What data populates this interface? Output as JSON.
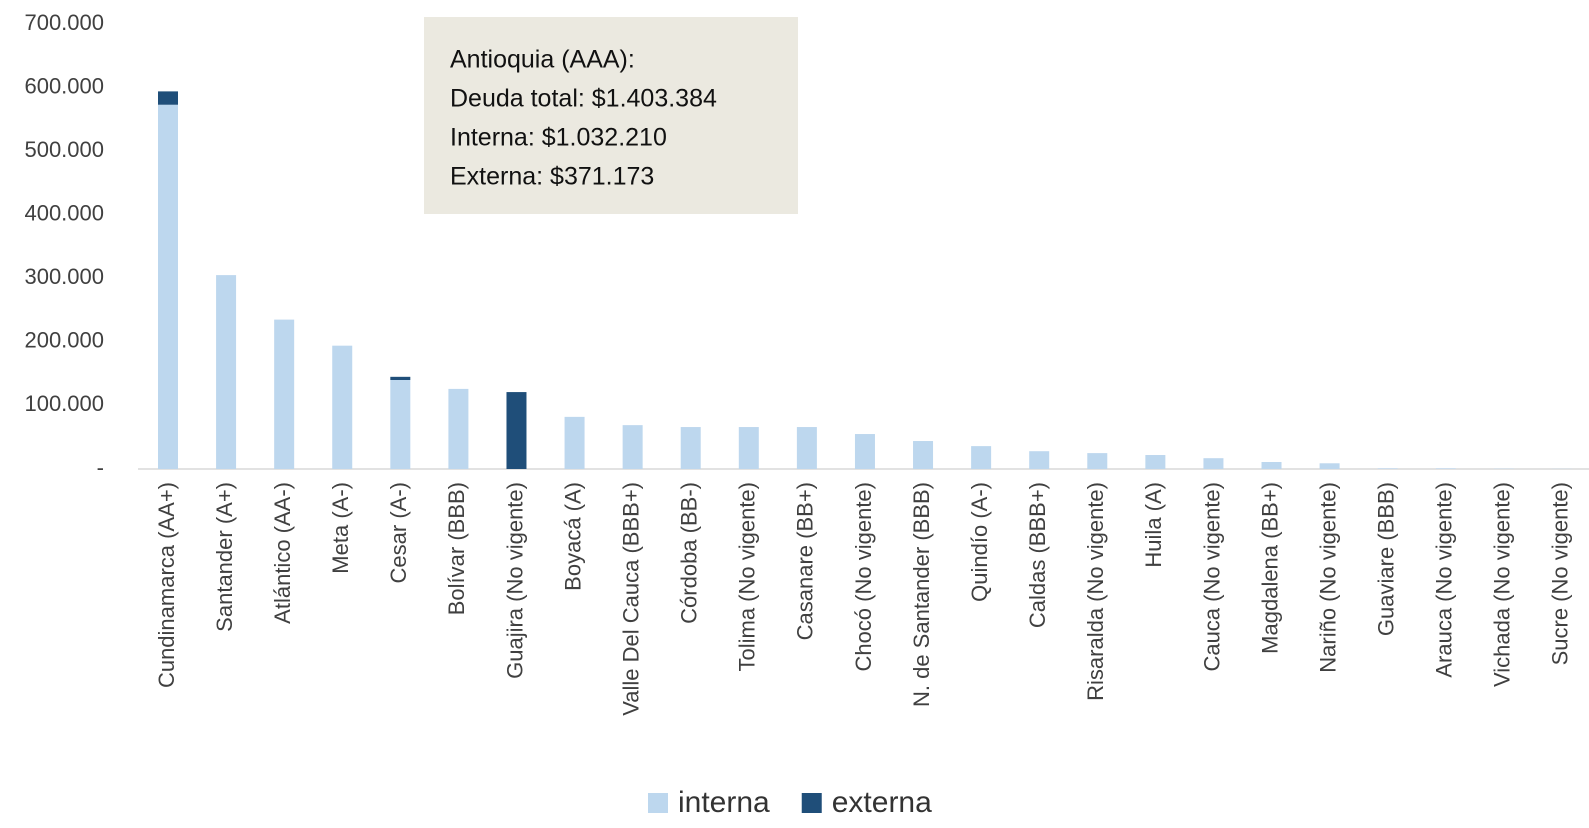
{
  "chart_data": {
    "type": "stacked_bar",
    "categories": [
      "Cundinamarca (AA+)",
      "Santander (A+)",
      "Atlántico (AA-)",
      "Meta (A-)",
      "Cesar (A-)",
      "Bolívar (BBB)",
      "Guajira (No vigente)",
      "Boyacá (A)",
      "Valle Del Cauca (BBB+)",
      "Córdoba (BB-)",
      "Tolima (No vigente)",
      "Casanare (BB+)",
      "Chocó (No vigente)",
      "N. de Santander (BBB)",
      "Quindío (A-)",
      "Caldas (BBB+)",
      "Risaralda (No vigente)",
      "Huila (A)",
      "Cauca (No vigente)",
      "Magdalena (BB+)",
      "Nariño (No vigente)",
      "Guaviare (BBB)",
      "Arauca (No vigente)",
      "Vichada (No vigente)",
      "Sucre (No vigente)"
    ],
    "series": [
      {
        "name": "interna",
        "color": "#bdd7ee",
        "values": [
          573000,
          305000,
          235000,
          194000,
          140000,
          126000,
          0,
          82000,
          69000,
          66000,
          66000,
          66000,
          55000,
          44000,
          36000,
          28000,
          25000,
          22000,
          17000,
          11000,
          9000,
          1000,
          1000,
          500,
          300
        ]
      },
      {
        "name": "externa",
        "color": "#1f4e79",
        "values": [
          21000,
          0,
          0,
          0,
          5000,
          0,
          121000,
          0,
          0,
          0,
          0,
          0,
          0,
          0,
          0,
          0,
          0,
          0,
          0,
          0,
          0,
          0,
          0,
          0,
          0
        ]
      }
    ],
    "ylim": [
      0,
      700000
    ],
    "yticks": [
      {
        "value": 0,
        "label": "-"
      },
      {
        "value": 100000,
        "label": "100.000"
      },
      {
        "value": 200000,
        "label": "200.000"
      },
      {
        "value": 300000,
        "label": "300.000"
      },
      {
        "value": 400000,
        "label": "400.000"
      },
      {
        "value": 500000,
        "label": "500.000"
      },
      {
        "value": 600000,
        "label": "600.000"
      },
      {
        "value": 700000,
        "label": "700.000"
      }
    ],
    "annotation": [
      "Antioquia (AAA):",
      "Deuda total: $1.403.384",
      "Interna: $1.032.210",
      "Externa: $371.173"
    ],
    "legend": "bottom"
  }
}
